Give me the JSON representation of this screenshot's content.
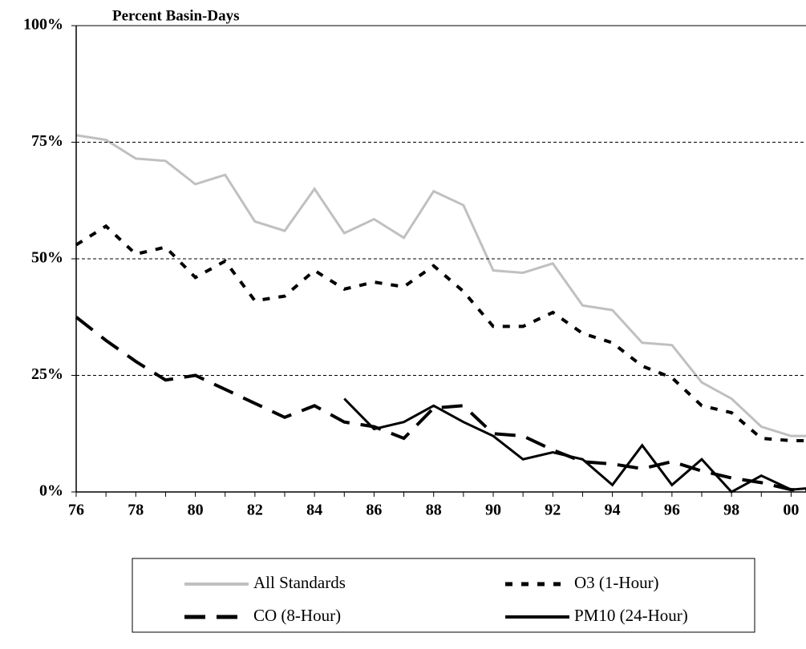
{
  "chart_data": {
    "type": "line",
    "y_axis_label": "Percent Basin-Days",
    "x": [
      1976,
      1977,
      1978,
      1979,
      1980,
      1981,
      1982,
      1983,
      1984,
      1985,
      1986,
      1987,
      1988,
      1989,
      1990,
      1991,
      1992,
      1993,
      1994,
      1995,
      1996,
      1997,
      1998,
      1999,
      2000,
      2001
    ],
    "series": [
      {
        "name": "All Standards",
        "color": "#c0c0c0",
        "line_style": "solid",
        "values": [
          76.5,
          75.5,
          71.5,
          71,
          66,
          68,
          58,
          56,
          65,
          55.5,
          58.5,
          54.5,
          64.5,
          61.5,
          47.5,
          47,
          49,
          40,
          39,
          32,
          31.5,
          23.5,
          20,
          14,
          12,
          12
        ]
      },
      {
        "name": "O3 (1-Hour)",
        "color": "#000000",
        "line_style": "dotted",
        "values": [
          53,
          57,
          51,
          52.5,
          46,
          49.5,
          41,
          42,
          47.5,
          43.5,
          45,
          44,
          48.5,
          43,
          35.5,
          35.5,
          38.5,
          34,
          32,
          27,
          24.5,
          18.5,
          17,
          11.5,
          11,
          11
        ]
      },
      {
        "name": "CO (8-Hour)",
        "color": "#000000",
        "line_style": "long-dash",
        "values": [
          37.5,
          32.5,
          28,
          24,
          25,
          22,
          19,
          16,
          18.5,
          15,
          14,
          11.5,
          18,
          18.5,
          12.5,
          12,
          9,
          6.5,
          6,
          5,
          6.5,
          4.5,
          3,
          2,
          0.5,
          0.5
        ]
      },
      {
        "name": "PM10 (24-Hour)",
        "color": "#000000",
        "line_style": "solid",
        "values": [
          null,
          null,
          null,
          null,
          null,
          null,
          null,
          null,
          null,
          20,
          13.5,
          15,
          18.5,
          15,
          12,
          7,
          8.5,
          7,
          1.5,
          10,
          1.5,
          7,
          0,
          3.5,
          0.5,
          1
        ]
      }
    ],
    "xlim": [
      1976,
      2000.5
    ],
    "xticks": [
      {
        "value": 1976,
        "label": "76"
      },
      {
        "value": 1978,
        "label": "78"
      },
      {
        "value": 1980,
        "label": "80"
      },
      {
        "value": 1982,
        "label": "82"
      },
      {
        "value": 1984,
        "label": "84"
      },
      {
        "value": 1986,
        "label": "86"
      },
      {
        "value": 1988,
        "label": "88"
      },
      {
        "value": 1990,
        "label": "90"
      },
      {
        "value": 1992,
        "label": "92"
      },
      {
        "value": 1994,
        "label": "94"
      },
      {
        "value": 1996,
        "label": "96"
      },
      {
        "value": 1998,
        "label": "98"
      },
      {
        "value": 2000,
        "label": "00"
      }
    ],
    "ylim": [
      0,
      100
    ],
    "yticks": [
      {
        "value": 0,
        "label": "0%"
      },
      {
        "value": 25,
        "label": "25%"
      },
      {
        "value": 50,
        "label": "50%"
      },
      {
        "value": 75,
        "label": "75%"
      },
      {
        "value": 100,
        "label": "100%"
      }
    ],
    "grid": true,
    "legend": "bottom"
  }
}
